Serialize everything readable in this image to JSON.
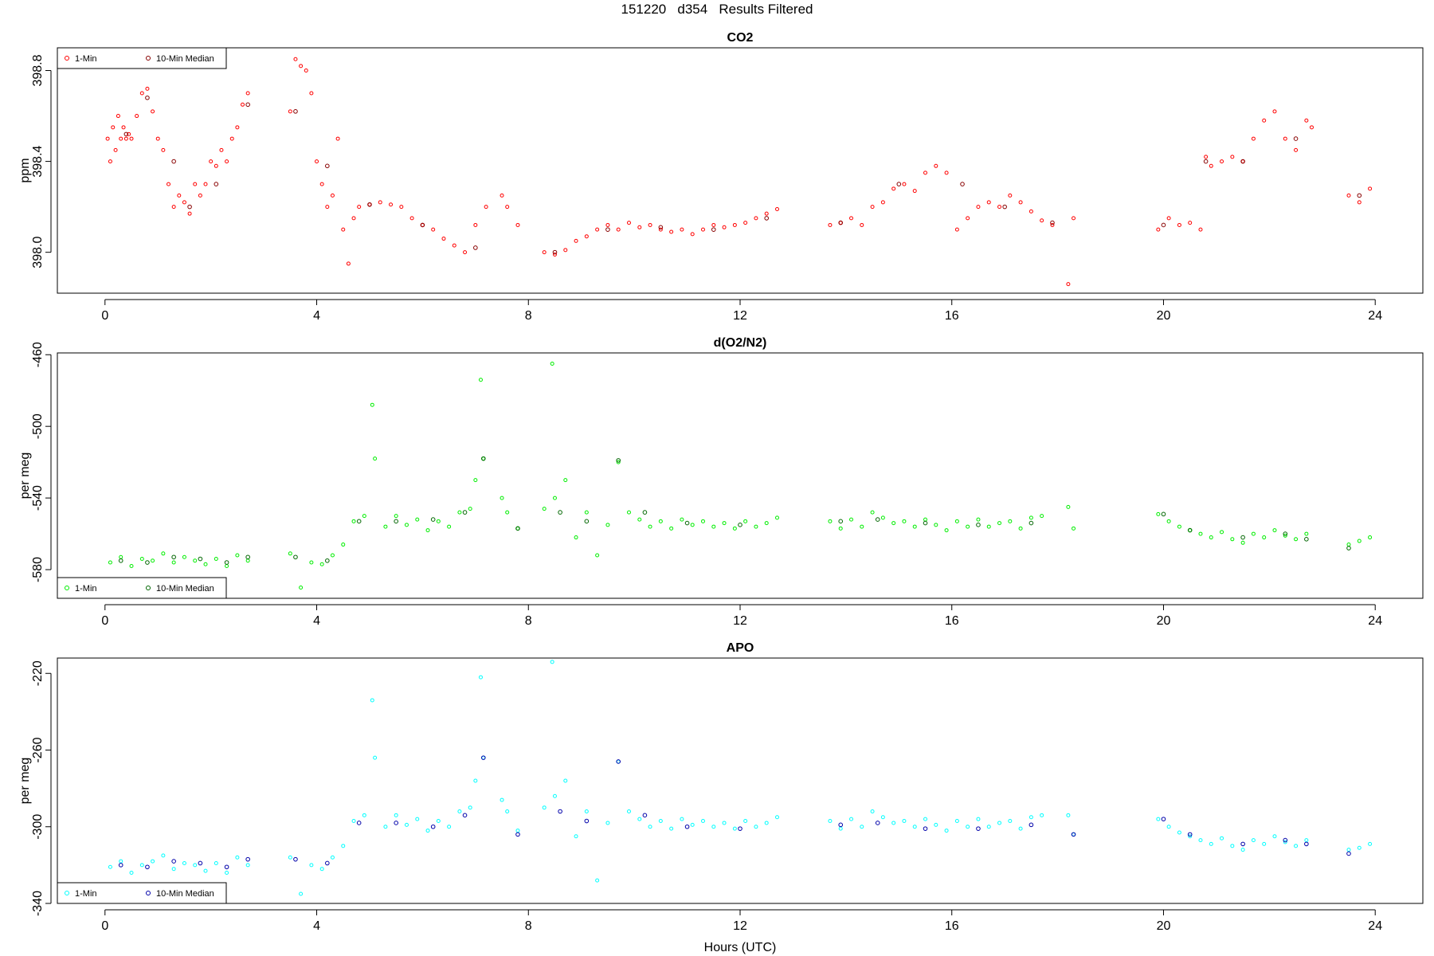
{
  "page": {
    "title": "151220   d354   Results Filtered",
    "xlabel": "Hours (UTC)"
  },
  "legend": {
    "item1": "1-Min",
    "item2": "10-Min Median"
  },
  "chart_data": [
    {
      "type": "scatter",
      "title": "CO2",
      "ylabel": "ppm",
      "xlabel": "",
      "xlim": [
        -0.9,
        24.9
      ],
      "ylim": [
        397.82,
        398.9
      ],
      "xticks": [
        0,
        4,
        8,
        12,
        16,
        20,
        24
      ],
      "yticks": [
        398.0,
        398.4,
        398.8
      ],
      "ytick_labels": [
        "398.0",
        "398.4",
        "398.8"
      ],
      "grid": false,
      "legend_position": "top-left",
      "series": [
        {
          "name": "1-Min",
          "color": "#ff0000",
          "x": [
            0.05,
            0.1,
            0.15,
            0.2,
            0.25,
            0.3,
            0.35,
            0.4,
            0.45,
            0.5,
            0.6,
            0.7,
            0.8,
            0.9,
            1.0,
            1.1,
            1.2,
            1.3,
            1.4,
            1.5,
            1.6,
            1.7,
            1.8,
            1.9,
            2.0,
            2.1,
            2.2,
            2.3,
            2.4,
            2.5,
            2.6,
            2.7,
            3.5,
            3.6,
            3.7,
            3.8,
            3.9,
            4.0,
            4.1,
            4.2,
            4.3,
            4.4,
            4.5,
            4.6,
            4.7,
            4.8,
            5.0,
            5.2,
            5.4,
            5.6,
            5.8,
            6.0,
            6.2,
            6.4,
            6.6,
            6.8,
            7.0,
            7.2,
            7.5,
            7.6,
            7.8,
            8.3,
            8.5,
            8.7,
            8.9,
            9.1,
            9.3,
            9.5,
            9.7,
            9.9,
            10.1,
            10.3,
            10.5,
            10.7,
            10.9,
            11.1,
            11.3,
            11.5,
            11.7,
            11.9,
            12.1,
            12.3,
            12.5,
            12.7,
            13.7,
            13.9,
            14.1,
            14.3,
            14.5,
            14.7,
            14.9,
            15.1,
            15.3,
            15.5,
            15.7,
            15.9,
            16.1,
            16.3,
            16.5,
            16.7,
            16.9,
            17.1,
            17.3,
            17.5,
            17.7,
            17.9,
            18.2,
            18.3,
            19.9,
            20.1,
            20.3,
            20.5,
            20.7,
            20.8,
            20.9,
            21.1,
            21.3,
            21.5,
            21.7,
            21.9,
            22.1,
            22.3,
            22.5,
            22.7,
            22.8,
            23.5,
            23.7,
            23.9
          ],
          "y": [
            398.5,
            398.4,
            398.55,
            398.45,
            398.6,
            398.5,
            398.55,
            398.5,
            398.52,
            398.5,
            398.6,
            398.7,
            398.72,
            398.62,
            398.5,
            398.45,
            398.3,
            398.2,
            398.25,
            398.22,
            398.17,
            398.3,
            398.25,
            398.3,
            398.4,
            398.38,
            398.45,
            398.4,
            398.5,
            398.55,
            398.65,
            398.7,
            398.62,
            398.85,
            398.82,
            398.8,
            398.7,
            398.4,
            398.3,
            398.2,
            398.25,
            398.5,
            398.1,
            397.95,
            398.15,
            398.2,
            398.21,
            398.22,
            398.21,
            398.2,
            398.15,
            398.12,
            398.1,
            398.06,
            398.03,
            398.0,
            398.12,
            398.2,
            398.25,
            398.2,
            398.12,
            398.0,
            397.99,
            398.01,
            398.05,
            398.07,
            398.1,
            398.12,
            398.1,
            398.13,
            398.11,
            398.12,
            398.1,
            398.09,
            398.1,
            398.08,
            398.1,
            398.12,
            398.11,
            398.12,
            398.13,
            398.15,
            398.17,
            398.19,
            398.12,
            398.13,
            398.15,
            398.12,
            398.2,
            398.22,
            398.28,
            398.3,
            398.27,
            398.35,
            398.38,
            398.35,
            398.1,
            398.15,
            398.2,
            398.22,
            398.2,
            398.25,
            398.22,
            398.18,
            398.14,
            398.12,
            397.86,
            398.15,
            398.1,
            398.15,
            398.12,
            398.13,
            398.1,
            398.42,
            398.38,
            398.4,
            398.42,
            398.4,
            398.5,
            398.58,
            398.62,
            398.5,
            398.45,
            398.58,
            398.55,
            398.25,
            398.22,
            398.28
          ]
        },
        {
          "name": "10-Min Median",
          "color": "#880000",
          "x": [
            0.4,
            0.8,
            1.3,
            1.6,
            2.1,
            2.7,
            3.6,
            4.2,
            5.0,
            6.0,
            7.0,
            8.5,
            9.5,
            10.5,
            11.5,
            12.5,
            13.9,
            15.0,
            16.2,
            17.0,
            17.9,
            20.0,
            20.8,
            21.5,
            22.5,
            23.7
          ],
          "y": [
            398.52,
            398.68,
            398.4,
            398.2,
            398.3,
            398.65,
            398.62,
            398.38,
            398.21,
            398.12,
            398.02,
            398.0,
            398.1,
            398.11,
            398.1,
            398.15,
            398.13,
            398.3,
            398.3,
            398.2,
            398.13,
            398.12,
            398.4,
            398.4,
            398.5,
            398.25
          ]
        }
      ]
    },
    {
      "type": "scatter",
      "title": "d(O2/N2)",
      "ylabel": "per meg",
      "xlabel": "",
      "xlim": [
        -0.9,
        24.9
      ],
      "ylim": [
        -596,
        -459
      ],
      "xticks": [
        0,
        4,
        8,
        12,
        16,
        20,
        24
      ],
      "yticks": [
        -580,
        -540,
        -500,
        -460
      ],
      "ytick_labels": [
        "-580",
        "-540",
        "-500",
        "-460"
      ],
      "grid": false,
      "legend_position": "bottom-left",
      "series": [
        {
          "name": "1-Min",
          "color": "#00ee00",
          "x": [
            0.1,
            0.3,
            0.5,
            0.7,
            0.9,
            1.1,
            1.3,
            1.5,
            1.7,
            1.9,
            2.1,
            2.3,
            2.5,
            2.7,
            3.5,
            3.7,
            3.9,
            4.1,
            4.3,
            4.5,
            4.7,
            4.9,
            5.05,
            5.1,
            5.3,
            5.5,
            5.7,
            5.9,
            6.1,
            6.3,
            6.5,
            6.7,
            6.9,
            7.0,
            7.1,
            7.15,
            7.5,
            7.6,
            7.8,
            8.3,
            8.45,
            8.5,
            8.7,
            8.9,
            9.1,
            9.3,
            9.5,
            9.7,
            9.9,
            10.1,
            10.3,
            10.5,
            10.7,
            10.9,
            11.1,
            11.3,
            11.5,
            11.7,
            11.9,
            12.1,
            12.3,
            12.5,
            12.7,
            13.7,
            13.9,
            14.1,
            14.3,
            14.5,
            14.7,
            14.9,
            15.1,
            15.3,
            15.5,
            15.7,
            15.9,
            16.1,
            16.3,
            16.5,
            16.7,
            16.9,
            17.1,
            17.3,
            17.5,
            17.7,
            18.2,
            18.3,
            19.9,
            20.1,
            20.3,
            20.5,
            20.7,
            20.9,
            21.1,
            21.3,
            21.5,
            21.7,
            21.9,
            22.1,
            22.3,
            22.5,
            22.7,
            23.5,
            23.7,
            23.9
          ],
          "y": [
            -576,
            -573,
            -578,
            -574,
            -575,
            -571,
            -576,
            -573,
            -575,
            -577,
            -574,
            -578,
            -572,
            -575,
            -571,
            -590,
            -576,
            -577,
            -572,
            -566,
            -553,
            -550,
            -488,
            -518,
            -556,
            -550,
            -555,
            -552,
            -558,
            -553,
            -556,
            -548,
            -546,
            -530,
            -474,
            -518,
            -540,
            -548,
            -557,
            -546,
            -465,
            -540,
            -530,
            -562,
            -548,
            -572,
            -555,
            -520,
            -548,
            -552,
            -556,
            -553,
            -557,
            -552,
            -555,
            -553,
            -556,
            -554,
            -557,
            -553,
            -556,
            -554,
            -551,
            -553,
            -557,
            -552,
            -556,
            -548,
            -551,
            -554,
            -553,
            -556,
            -552,
            -555,
            -558,
            -553,
            -556,
            -552,
            -556,
            -554,
            -553,
            -557,
            -551,
            -550,
            -545,
            -557,
            -549,
            -553,
            -556,
            -558,
            -560,
            -562,
            -559,
            -563,
            -565,
            -560,
            -562,
            -558,
            -561,
            -563,
            -560,
            -566,
            -564,
            -562
          ]
        },
        {
          "name": "10-Min Median",
          "color": "#006600",
          "x": [
            0.3,
            0.8,
            1.3,
            1.8,
            2.3,
            2.7,
            3.6,
            4.2,
            4.8,
            5.5,
            6.2,
            6.8,
            7.15,
            7.8,
            8.6,
            9.1,
            9.7,
            10.2,
            11.0,
            12.0,
            13.9,
            14.6,
            15.5,
            16.5,
            17.5,
            20.0,
            20.5,
            21.5,
            22.3,
            22.7,
            23.5
          ],
          "y": [
            -575,
            -576,
            -573,
            -574,
            -576,
            -573,
            -573,
            -575,
            -553,
            -553,
            -552,
            -548,
            -518,
            -557,
            -548,
            -553,
            -519,
            -548,
            -554,
            -555,
            -553,
            -552,
            -554,
            -555,
            -554,
            -549,
            -558,
            -562,
            -560,
            -563,
            -568
          ]
        }
      ]
    },
    {
      "type": "scatter",
      "title": "APO",
      "ylabel": "per meg",
      "xlabel": "Hours (UTC)",
      "xlim": [
        -0.9,
        24.9
      ],
      "ylim": [
        -340,
        -212
      ],
      "xticks": [
        0,
        4,
        8,
        12,
        16,
        20,
        24
      ],
      "yticks": [
        -340,
        -300,
        -260,
        -220
      ],
      "ytick_labels": [
        "-340",
        "-300",
        "-260",
        "-220"
      ],
      "grid": false,
      "legend_position": "bottom-left",
      "series": [
        {
          "name": "1-Min",
          "color": "#00ffff",
          "x": [
            0.1,
            0.3,
            0.5,
            0.7,
            0.9,
            1.1,
            1.3,
            1.5,
            1.7,
            1.9,
            2.1,
            2.3,
            2.5,
            2.7,
            3.5,
            3.7,
            3.9,
            4.1,
            4.3,
            4.5,
            4.7,
            4.9,
            5.05,
            5.1,
            5.3,
            5.5,
            5.7,
            5.9,
            6.1,
            6.3,
            6.5,
            6.7,
            6.9,
            7.0,
            7.1,
            7.15,
            7.5,
            7.6,
            7.8,
            8.3,
            8.45,
            8.5,
            8.7,
            8.9,
            9.1,
            9.3,
            9.5,
            9.7,
            9.9,
            10.1,
            10.3,
            10.5,
            10.7,
            10.9,
            11.1,
            11.3,
            11.5,
            11.7,
            11.9,
            12.1,
            12.3,
            12.5,
            12.7,
            13.7,
            13.9,
            14.1,
            14.3,
            14.5,
            14.7,
            14.9,
            15.1,
            15.3,
            15.5,
            15.7,
            15.9,
            16.1,
            16.3,
            16.5,
            16.7,
            16.9,
            17.1,
            17.3,
            17.5,
            17.7,
            18.2,
            18.3,
            19.9,
            20.1,
            20.3,
            20.5,
            20.7,
            20.9,
            21.1,
            21.3,
            21.5,
            21.7,
            21.9,
            22.1,
            22.3,
            22.5,
            22.7,
            23.5,
            23.7,
            23.9
          ],
          "y": [
            -321,
            -318,
            -324,
            -320,
            -318,
            -315,
            -322,
            -319,
            -320,
            -323,
            -319,
            -324,
            -316,
            -320,
            -316,
            -335,
            -320,
            -322,
            -316,
            -310,
            -297,
            -294,
            -234,
            -264,
            -300,
            -294,
            -299,
            -296,
            -302,
            -297,
            -300,
            -292,
            -290,
            -276,
            -222,
            -264,
            -286,
            -292,
            -302,
            -290,
            -214,
            -284,
            -276,
            -305,
            -292,
            -328,
            -298,
            -266,
            -292,
            -296,
            -300,
            -297,
            -301,
            -296,
            -299,
            -297,
            -300,
            -298,
            -301,
            -297,
            -300,
            -298,
            -295,
            -297,
            -301,
            -296,
            -300,
            -292,
            -295,
            -298,
            -297,
            -300,
            -296,
            -299,
            -302,
            -297,
            -300,
            -296,
            -300,
            -298,
            -297,
            -301,
            -295,
            -294,
            -294,
            -304,
            -296,
            -300,
            -303,
            -305,
            -307,
            -309,
            -306,
            -310,
            -312,
            -307,
            -309,
            -305,
            -308,
            -310,
            -307,
            -312,
            -311,
            -309
          ]
        },
        {
          "name": "10-Min Median",
          "color": "#0000aa",
          "x": [
            0.3,
            0.8,
            1.3,
            1.8,
            2.3,
            2.7,
            3.6,
            4.2,
            4.8,
            5.5,
            6.2,
            6.8,
            7.15,
            7.8,
            8.6,
            9.1,
            9.7,
            10.2,
            11.0,
            12.0,
            13.9,
            14.6,
            15.5,
            16.5,
            17.5,
            18.3,
            20.0,
            20.5,
            21.5,
            22.3,
            22.7,
            23.5
          ],
          "y": [
            -320,
            -321,
            -318,
            -319,
            -321,
            -317,
            -317,
            -319,
            -298,
            -298,
            -300,
            -294,
            -264,
            -304,
            -292,
            -297,
            -266,
            -294,
            -300,
            -301,
            -299,
            -298,
            -301,
            -301,
            -299,
            -304,
            -296,
            -304,
            -309,
            -307,
            -309,
            -314
          ]
        }
      ]
    }
  ]
}
